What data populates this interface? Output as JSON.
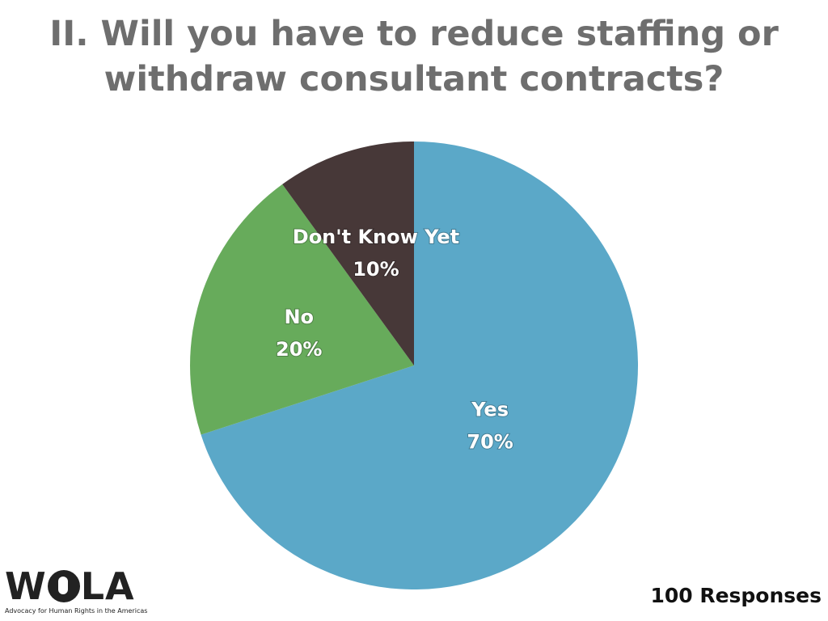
{
  "title_lines": [
    "II. Will you have to reduce staffing or",
    "withdraw consultant contracts?"
  ],
  "chart_data": {
    "type": "pie",
    "title": "II. Will you have to reduce staffing or withdraw consultant contracts?",
    "slices": [
      {
        "label": "Yes",
        "value": 70,
        "value_label": "70%",
        "color": "#5ba8c8"
      },
      {
        "label": "No",
        "value": 20,
        "value_label": "20%",
        "color": "#67ab5b"
      },
      {
        "label": "Don't Know Yet",
        "value": 10,
        "value_label": "10%",
        "color": "#473838"
      }
    ],
    "start": "12 o'clock",
    "direction": "clockwise",
    "legend": "none"
  },
  "footer": {
    "responses": "100 Responses"
  },
  "logo": {
    "wordmark": "WOLA",
    "tagline": "Advocacy for Human Rights in the Americas"
  }
}
